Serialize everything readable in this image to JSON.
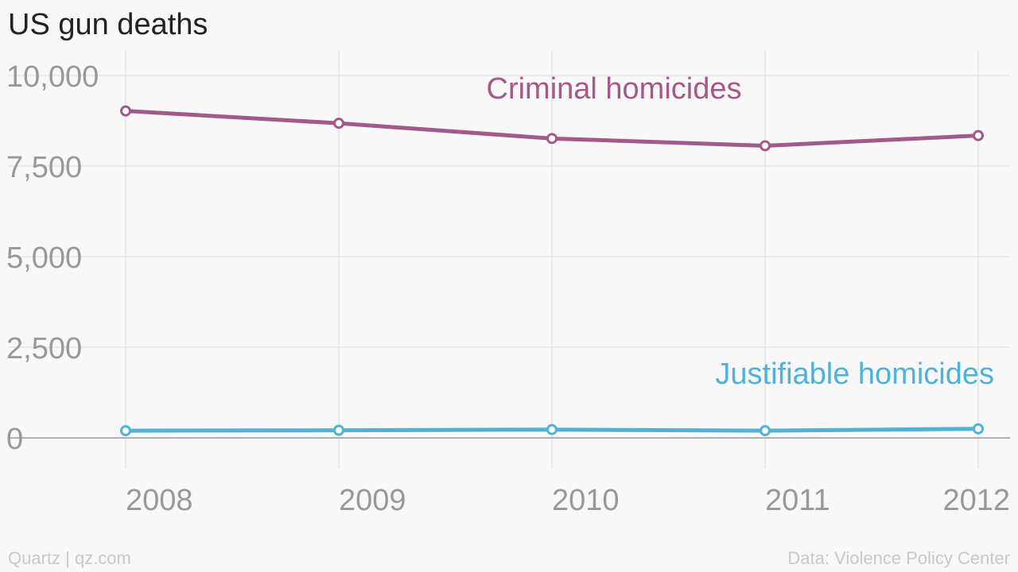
{
  "chart_data": {
    "type": "line",
    "title": "US gun deaths",
    "x": [
      "2008",
      "2009",
      "2010",
      "2011",
      "2012"
    ],
    "y_ticks": [
      0,
      2500,
      5000,
      7500,
      10000
    ],
    "y_tick_labels": [
      "0",
      "2,500",
      "5,000",
      "7,500",
      "10,000"
    ],
    "ylim": [
      -850,
      10700
    ],
    "grid": true,
    "series": [
      {
        "name": "Criminal homicides",
        "values": [
          9020,
          8680,
          8260,
          8060,
          8340
        ],
        "color": "#a35a8a"
      },
      {
        "name": "Justifiable homicides",
        "values": [
          200,
          210,
          230,
          200,
          250
        ],
        "color": "#51b2d9"
      }
    ]
  },
  "footer": {
    "source_left": "Quartz | qz.com",
    "source_right": "Data: Violence Policy Center"
  }
}
